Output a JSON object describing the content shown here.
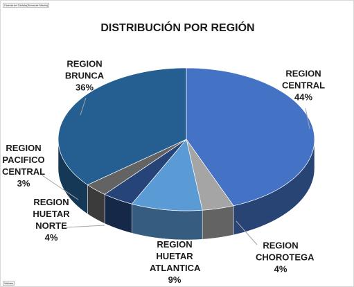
{
  "chart_data": {
    "type": "pie",
    "title": "DISTRIBUCIÓN POR REGIÓN",
    "field_button": "Cuenta de Cedula(Suma de Monto)",
    "values_button": "Valores",
    "categories": [
      "REGION CENTRAL",
      "REGION CHOROTEGA",
      "REGION HUETAR ATLANTICA",
      "REGION HUETAR NORTE",
      "REGION PACIFICO CENTRAL",
      "REGION BRUNCA"
    ],
    "values": [
      44,
      4,
      9,
      4,
      3,
      36
    ],
    "value_labels": [
      "44%",
      "4%",
      "9%",
      "4%",
      "3%",
      "36%"
    ],
    "colors": [
      "#4472c4",
      "#a5a5a5",
      "#5b9bd5",
      "#264478",
      "#636363",
      "#255e91"
    ]
  }
}
